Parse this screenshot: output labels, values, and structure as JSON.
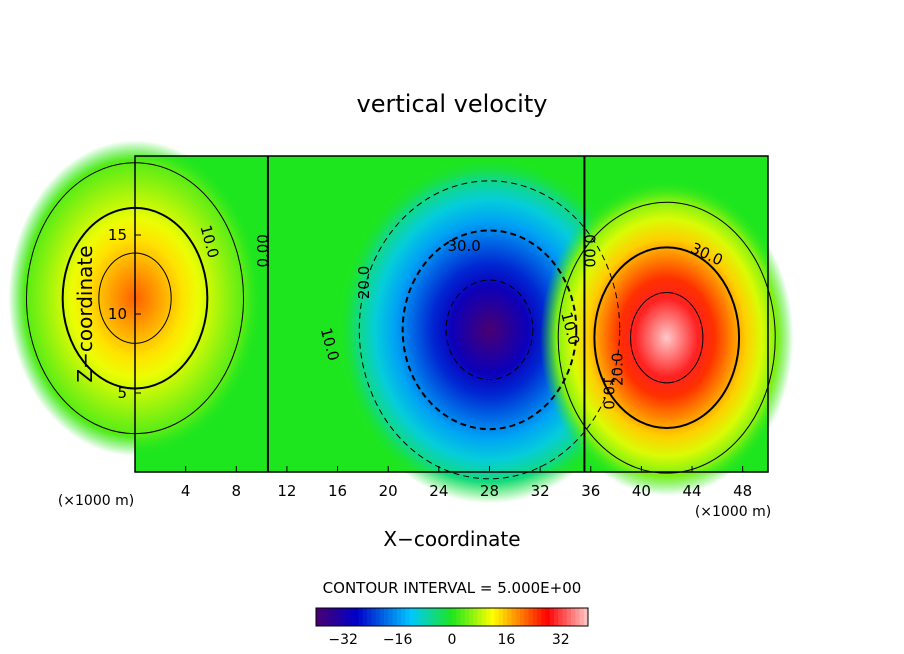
{
  "chart_data": {
    "type": "contour",
    "title": "vertical velocity",
    "xlabel": "X−coordinate",
    "ylabel": "Z−coordinate",
    "x_unit_left": "(×1000 m)",
    "x_unit_right": "(×1000 m)",
    "xlim": [
      0,
      50
    ],
    "ylim": [
      0,
      20
    ],
    "xticks": [
      "4",
      "8",
      "12",
      "16",
      "20",
      "24",
      "28",
      "32",
      "36",
      "40",
      "44",
      "48"
    ],
    "yticks": [
      "5",
      "10",
      "15"
    ],
    "contour_interval_text": "CONTOUR INTERVAL = 5.000E+00",
    "contour_interval": 5,
    "extrema": [
      {
        "sign": "negative",
        "x": 28,
        "z": 9,
        "value": -40
      },
      {
        "sign": "positive",
        "x": 42,
        "z": 8.5,
        "value": 40
      },
      {
        "sign": "positive",
        "x": 0,
        "z": 11,
        "value": 22
      }
    ],
    "contour_labels": [
      {
        "text": "10.0",
        "x": 5.5,
        "z": 14.5,
        "rot": 75
      },
      {
        "text": "0.00",
        "x": 10.5,
        "z": 14,
        "rot": -90
      },
      {
        "text": "30.0",
        "x": 26,
        "z": 14,
        "rot": 0
      },
      {
        "text": "20.0",
        "x": 18.5,
        "z": 12,
        "rot": -90
      },
      {
        "text": "10.0",
        "x": 15,
        "z": 8,
        "rot": 75
      },
      {
        "text": "10.0",
        "x": 34,
        "z": 9,
        "rot": 75
      },
      {
        "text": "0.00",
        "x": 35.5,
        "z": 14,
        "rot": 90
      },
      {
        "text": "30.0",
        "x": 45,
        "z": 13.5,
        "rot": 25
      },
      {
        "text": "20.0",
        "x": 38.5,
        "z": 6.5,
        "rot": -90
      },
      {
        "text": "10.0",
        "x": 37,
        "z": 5,
        "rot": 90
      }
    ],
    "colorbar": {
      "range": [
        -40,
        40
      ],
      "ticks": [
        "−32",
        "−16",
        "0",
        "16",
        "32"
      ],
      "tick_values": [
        -32,
        -16,
        0,
        16,
        32
      ]
    },
    "colors": {
      "min": "#4a0070",
      "neg_strong": "#0000c8",
      "neg": "#00c8ff",
      "zero": "#1ee61e",
      "pos": "#ffff00",
      "pos_strong": "#ff0000",
      "max": "#ffc8c8"
    }
  }
}
